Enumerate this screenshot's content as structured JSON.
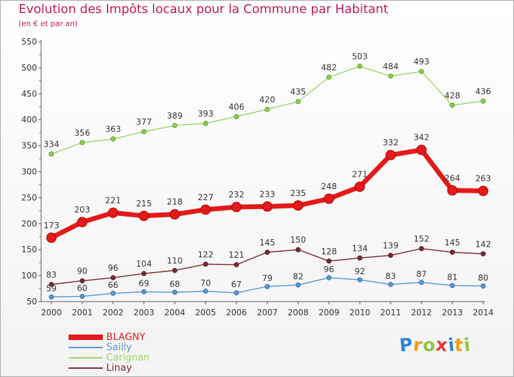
{
  "title": "Evolution des Impôts locaux pour la Commune par Habitant",
  "subtitle": "(en € et par an)",
  "brand": {
    "text": "Proxiti",
    "letters": [
      {
        "ch": "P",
        "color": "#2a86d6"
      },
      {
        "ch": "r",
        "color": "#f39c12"
      },
      {
        "ch": "o",
        "color": "#8cc63f"
      },
      {
        "ch": "x",
        "color": "#e53935"
      },
      {
        "ch": "i",
        "color": "#2a86d6"
      },
      {
        "ch": "t",
        "color": "#f39c12"
      },
      {
        "ch": "i",
        "color": "#8cc63f"
      }
    ]
  },
  "chart_data": {
    "type": "line",
    "title": "Evolution des Impôts locaux pour la Commune par Habitant",
    "subtitle": "(en € et par an)",
    "xlabel": "",
    "ylabel": "",
    "x": [
      "2000",
      "2001",
      "2002",
      "2003",
      "2004",
      "2005",
      "2006",
      "2007",
      "2008",
      "2009",
      "2010",
      "2011",
      "2012",
      "2013",
      "2014"
    ],
    "ylim": [
      50,
      550
    ],
    "yticks": [
      50,
      100,
      150,
      200,
      250,
      300,
      350,
      400,
      450,
      500,
      550
    ],
    "grid": false,
    "legend_position": "bottom-left",
    "series": [
      {
        "name": "BLAGNY",
        "color": "#e41a1a",
        "values": [
          173,
          203,
          221,
          215,
          218,
          227,
          232,
          233,
          235,
          248,
          271,
          332,
          342,
          264,
          263
        ]
      },
      {
        "name": "Sailly",
        "color": "#5a97d0",
        "values": [
          59,
          60,
          66,
          69,
          68,
          70,
          67,
          79,
          82,
          96,
          92,
          83,
          87,
          81,
          80
        ]
      },
      {
        "name": "Carignan",
        "color": "#9fd66b",
        "values": [
          334,
          356,
          363,
          377,
          389,
          393,
          406,
          420,
          435,
          482,
          503,
          484,
          493,
          428,
          436
        ]
      },
      {
        "name": "Linay",
        "color": "#7b2b35",
        "values": [
          83,
          90,
          96,
          104,
          110,
          122,
          121,
          145,
          150,
          128,
          134,
          139,
          152,
          145,
          142
        ]
      }
    ]
  }
}
